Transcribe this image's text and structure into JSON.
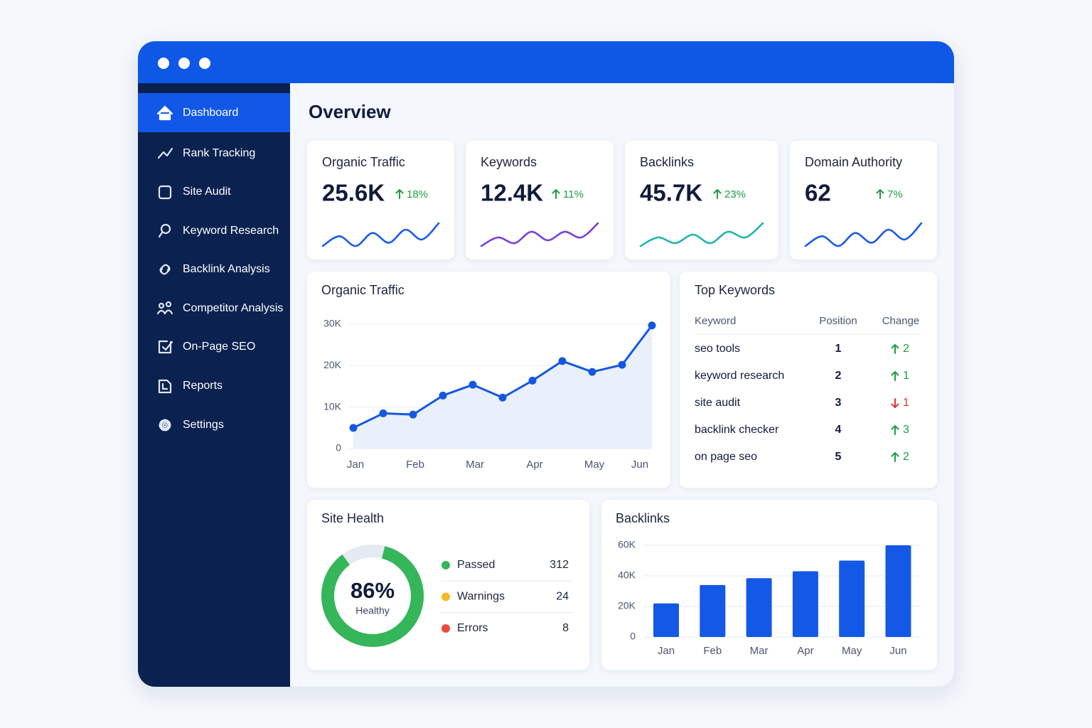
{
  "sidebar": {
    "items": [
      "Dashboard",
      "Rank Tracking",
      "Site Audit",
      "Keyword Research",
      "Backlink Analysis",
      "Competitor Analysis",
      "On-Page SEO",
      "Reports",
      "Settings"
    ]
  },
  "page": {
    "title": "Overview"
  },
  "kpis": [
    {
      "title": "Organic Traffic",
      "value": "25.6K",
      "change": "18%",
      "direction": "up",
      "color": "#1a5ae8",
      "spark": [
        2,
        5,
        2,
        6,
        3,
        7,
        4,
        9
      ]
    },
    {
      "title": "Keywords",
      "value": "12.4K",
      "change": "11%",
      "direction": "up",
      "color": "#7a3fdc",
      "spark": [
        1,
        4,
        2,
        6,
        3,
        6,
        4,
        9
      ]
    },
    {
      "title": "Backlinks",
      "value": "45.7K",
      "change": "23%",
      "direction": "up",
      "color": "#22b3ad",
      "spark": [
        1,
        4,
        2,
        5,
        2,
        6,
        4,
        9
      ]
    },
    {
      "title": "Domain Authority",
      "value": "62",
      "change": "7%",
      "direction": "up",
      "color": "#1a5ae8",
      "spark": [
        2,
        5,
        2,
        6,
        3,
        7,
        4,
        9
      ]
    }
  ],
  "top_keywords": {
    "title": "Top Keywords",
    "columns": [
      "Keyword",
      "Position",
      "Change"
    ],
    "rows": [
      {
        "keyword": "seo tools",
        "position": 1,
        "change": 2,
        "direction": "up"
      },
      {
        "keyword": "keyword research",
        "position": 2,
        "change": 1,
        "direction": "up"
      },
      {
        "keyword": "site audit",
        "position": 3,
        "change": 1,
        "direction": "down"
      },
      {
        "keyword": "backlink checker",
        "position": 4,
        "change": 3,
        "direction": "up"
      },
      {
        "keyword": "on page seo",
        "position": 5,
        "change": 2,
        "direction": "up"
      }
    ]
  },
  "chart_data": [
    {
      "type": "line",
      "title": "Organic Traffic",
      "categories": [
        "Jan",
        null,
        "Feb",
        null,
        "Mar",
        null,
        "Apr",
        null,
        "May",
        null,
        "Jun"
      ],
      "values": [
        5000,
        8500,
        8200,
        12800,
        15400,
        12300,
        16400,
        21100,
        18500,
        20200,
        29700
      ],
      "color": "#1557e0",
      "area_color": "#e9f0fc",
      "ylim": [
        0,
        30000
      ],
      "yticks": [
        0,
        {
          "value": 10000,
          "label": "10K"
        },
        {
          "value": 20000,
          "label": "20K"
        },
        {
          "value": 30000,
          "label": "30K"
        }
      ],
      "grid": true
    },
    {
      "type": "donut",
      "title": "Site Health",
      "values": [
        86
      ],
      "value_labels": [
        "86%"
      ],
      "label": "Healthy",
      "color": "#35b65a",
      "track_color": "#e4eaf2",
      "legend": [
        {
          "name": "Passed",
          "value": 312,
          "color": "#35b65a"
        },
        {
          "name": "Warnings",
          "value": 24,
          "color": "#f5b82a"
        },
        {
          "name": "Errors",
          "value": 8,
          "color": "#ea4a3a"
        }
      ]
    },
    {
      "type": "bar",
      "title": "Backlinks",
      "categories": [
        "Jan",
        "Feb",
        "Mar",
        "Apr",
        "May",
        "Jun"
      ],
      "values": [
        22000,
        34000,
        38500,
        43000,
        50000,
        60000
      ],
      "color": "#1359e6",
      "ylim": [
        0,
        60000
      ],
      "yticks": [
        0,
        {
          "value": 20000,
          "label": "20K"
        },
        {
          "value": 40000,
          "label": "40K"
        },
        {
          "value": 60000,
          "label": "60K"
        }
      ],
      "grid": true
    }
  ]
}
